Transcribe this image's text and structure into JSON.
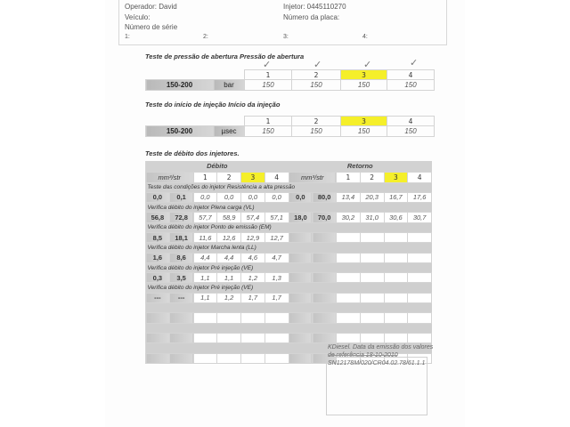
{
  "header": {
    "operator": "Operador: David",
    "injector": "Injetor: 0445110270",
    "vehicle": "Veículo:",
    "plate": "Número da placa:",
    "serial": "Número de série",
    "slots": [
      "1:",
      "2:",
      "3:",
      "4:"
    ]
  },
  "opening_pressure": {
    "title": "Teste de pressão de abertura Pressão de abertura",
    "range": "150-200",
    "unit": "bar",
    "columns": [
      "1",
      "2",
      "3",
      "4"
    ],
    "values": [
      "150",
      "150",
      "150",
      "150"
    ],
    "checked": [
      true,
      true,
      true,
      true
    ],
    "highlighted_column": "3"
  },
  "injection_start": {
    "title": "Teste do início de injeção Início da injeção",
    "range": "150-200",
    "unit": "µsec",
    "columns": [
      "1",
      "2",
      "3",
      "4"
    ],
    "values": [
      "150",
      "150",
      "150",
      "150"
    ],
    "highlighted_column": "3"
  },
  "flow_test": {
    "title": "Teste de débito dos injetores.",
    "debit_label": "Débito",
    "return_label": "Retorno",
    "unit": "mm³/str",
    "columns": [
      "1",
      "2",
      "3",
      "4"
    ],
    "highlight_color": "#f5ef2a",
    "sections": [
      {
        "label": "Teste das condições do injetor Resistência a alta pressão",
        "debit_range": [
          "0,0",
          "0,1"
        ],
        "debit": [
          "0,0",
          "0,0",
          "0,0",
          "0,0"
        ],
        "return_range": [
          "0,0",
          "80,0"
        ],
        "return": [
          "13,4",
          "20,3",
          "16,7",
          "17,6"
        ]
      },
      {
        "label": "Verifica débito do injetor Plena carga (VL)",
        "debit_range": [
          "56,8",
          "72,8"
        ],
        "debit": [
          "57,7",
          "58,9",
          "57,4",
          "57,1"
        ],
        "return_range": [
          "18,0",
          "70,0"
        ],
        "return": [
          "30,2",
          "31,0",
          "30,6",
          "30,7"
        ]
      },
      {
        "label": "Verifica débito do injetor Ponto de emissão (EM)",
        "debit_range": [
          "8,5",
          "18,1"
        ],
        "debit": [
          "11,6",
          "12,6",
          "12,9",
          "12,7"
        ],
        "return_range": [
          "",
          ""
        ],
        "return": [
          "",
          "",
          "",
          ""
        ]
      },
      {
        "label": "Verifica débito do injetor Marcha lenta (LL)",
        "debit_range": [
          "1,6",
          "8,6"
        ],
        "debit": [
          "4,4",
          "4,4",
          "4,6",
          "4,7"
        ],
        "return_range": [
          "",
          ""
        ],
        "return": [
          "",
          "",
          "",
          ""
        ]
      },
      {
        "label": "Verifica débito do injetor Pré injeção (VE)",
        "debit_range": [
          "0,3",
          "3,5"
        ],
        "debit": [
          "1,1",
          "1,1",
          "1,2",
          "1,3"
        ],
        "return_range": [
          "",
          ""
        ],
        "return": [
          "",
          "",
          "",
          ""
        ]
      },
      {
        "label": "Verifica débito do injetor Pré injeção (VE)",
        "debit_range": [
          "---",
          "---"
        ],
        "debit": [
          "1,1",
          "1,2",
          "1,7",
          "1,7"
        ],
        "return_range": [
          "",
          ""
        ],
        "return": [
          "",
          "",
          "",
          ""
        ]
      },
      {
        "label": "",
        "debit_range": [
          "",
          ""
        ],
        "debit": [
          "",
          "",
          "",
          ""
        ],
        "return_range": [
          "",
          ""
        ],
        "return": [
          "",
          "",
          "",
          ""
        ]
      },
      {
        "label": "",
        "debit_range": [
          "",
          ""
        ],
        "debit": [
          "",
          "",
          "",
          ""
        ],
        "return_range": [
          "",
          ""
        ],
        "return": [
          "",
          "",
          "",
          ""
        ]
      },
      {
        "label": "",
        "debit_range": [
          "",
          ""
        ],
        "debit": [
          "",
          "",
          "",
          ""
        ],
        "return_range": [
          "",
          ""
        ],
        "return": [
          "",
          "",
          "",
          ""
        ]
      }
    ]
  },
  "footer": {
    "line1": "KDiesel. Data da emissão dos valores",
    "line2": "de referência 18-10-2010",
    "line3": "SN12178M/020/CR04.02.78/61.1.1"
  }
}
